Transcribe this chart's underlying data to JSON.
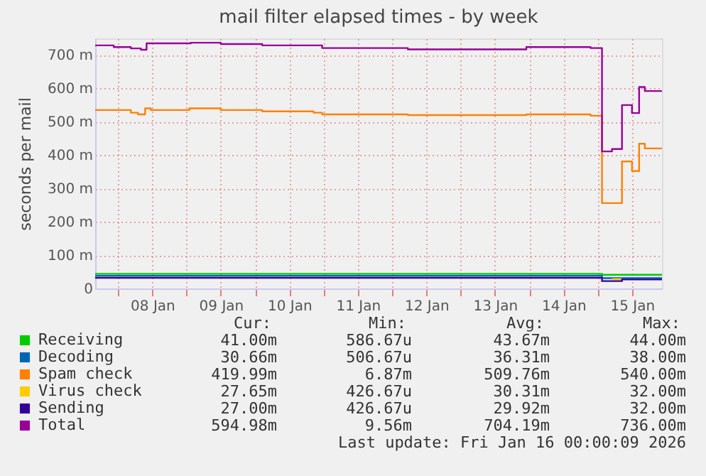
{
  "chart_data": {
    "type": "step",
    "title": "mail filter elapsed times - by week",
    "ylabel": "seconds per mail",
    "xlim": [
      "2026-01-07T16:00",
      "2026-01-15T22:30"
    ],
    "xticks": [
      {
        "value": "2026-01-08T00:00",
        "label": null
      },
      {
        "value": "2026-01-08T12:00",
        "label": "08 Jan"
      },
      {
        "value": "2026-01-09T00:00",
        "label": null
      },
      {
        "value": "2026-01-09T12:00",
        "label": "09 Jan"
      },
      {
        "value": "2026-01-10T00:00",
        "label": null
      },
      {
        "value": "2026-01-10T12:00",
        "label": "10 Jan"
      },
      {
        "value": "2026-01-11T00:00",
        "label": null
      },
      {
        "value": "2026-01-11T12:00",
        "label": "11 Jan"
      },
      {
        "value": "2026-01-12T00:00",
        "label": null
      },
      {
        "value": "2026-01-12T12:00",
        "label": "12 Jan"
      },
      {
        "value": "2026-01-13T00:00",
        "label": null
      },
      {
        "value": "2026-01-13T12:00",
        "label": "13 Jan"
      },
      {
        "value": "2026-01-14T00:00",
        "label": null
      },
      {
        "value": "2026-01-14T12:00",
        "label": "14 Jan"
      },
      {
        "value": "2026-01-15T00:00",
        "label": null
      },
      {
        "value": "2026-01-15T12:00",
        "label": "15 Jan"
      }
    ],
    "ylim": [
      0,
      750
    ],
    "yticks": [
      {
        "value": 0,
        "label": "0"
      },
      {
        "value": 100,
        "label": "100 m"
      },
      {
        "value": 200,
        "label": "200 m"
      },
      {
        "value": 300,
        "label": "300 m"
      },
      {
        "value": 400,
        "label": "400 m"
      },
      {
        "value": 500,
        "label": "500 m"
      },
      {
        "value": 600,
        "label": "600 m"
      },
      {
        "value": 700,
        "label": "700 m"
      }
    ],
    "grid": true,
    "legend": "bottom left",
    "series": [
      {
        "name": "Receiving",
        "color": "#00cc00",
        "x": [
          "2026-01-07T16:00",
          "2026-01-15T01:30",
          "2026-01-15T22:30"
        ],
        "values": [
          44,
          41,
          41
        ]
      },
      {
        "name": "Decoding",
        "color": "#0066b3",
        "x": [
          "2026-01-07T16:00",
          "2026-01-15T01:30",
          "2026-01-15T22:30"
        ],
        "values": [
          38,
          31,
          31
        ]
      },
      {
        "name": "Spam check",
        "color": "#ff8000",
        "x": [
          "2026-01-07T16:00",
          "2026-01-08T04:30",
          "2026-01-08T07:00",
          "2026-01-08T09:30",
          "2026-01-08T11:30",
          "2026-01-09T01:00",
          "2026-01-09T12:00",
          "2026-01-10T02:30",
          "2026-01-10T20:30",
          "2026-01-10T23:30",
          "2026-01-12T05:30",
          "2026-01-13T23:00",
          "2026-01-14T21:30",
          "2026-01-15T01:30",
          "2026-01-15T08:30",
          "2026-01-15T12:00",
          "2026-01-15T14:30",
          "2026-01-15T16:30",
          "2026-01-15T22:30"
        ],
        "values": [
          535,
          527,
          522,
          540,
          535,
          540,
          535,
          531,
          527,
          522,
          520,
          522,
          518,
          256,
          381,
          352,
          434,
          420,
          420
        ]
      },
      {
        "name": "Virus check",
        "color": "#ffcc00",
        "x": [
          "2026-01-15T05:00",
          "2026-01-15T08:30"
        ],
        "values": [
          28,
          28
        ]
      },
      {
        "name": "Sending",
        "color": "#330099",
        "x": [
          "2026-01-07T16:00",
          "2026-01-15T01:30",
          "2026-01-15T08:30",
          "2026-01-15T22:30"
        ],
        "values": [
          32,
          22,
          27,
          27
        ]
      },
      {
        "name": "Total",
        "color": "#990099",
        "x": [
          "2026-01-07T16:00",
          "2026-01-07T22:30",
          "2026-01-08T04:30",
          "2026-01-08T08:00",
          "2026-01-08T10:00",
          "2026-01-09T01:30",
          "2026-01-09T12:00",
          "2026-01-10T02:30",
          "2026-01-10T23:30",
          "2026-01-12T05:30",
          "2026-01-13T23:00",
          "2026-01-14T21:30",
          "2026-01-15T01:30",
          "2026-01-15T05:00",
          "2026-01-15T08:30",
          "2026-01-15T12:00",
          "2026-01-15T14:30",
          "2026-01-15T16:30",
          "2026-01-15T22:30"
        ],
        "values": [
          729,
          724,
          720,
          716,
          735,
          737,
          733,
          729,
          721,
          717,
          724,
          721,
          411,
          418,
          550,
          526,
          604,
          592,
          592
        ]
      }
    ],
    "annotations": [
      "Cur:",
      "Min:",
      "Avg:",
      "Max:",
      "41.00m",
      "586.67u",
      "43.67m",
      "44.00m",
      "30.66m",
      "506.67u",
      "36.31m",
      "38.00m",
      "419.99m",
      "6.87m",
      "509.76m",
      "540.00m",
      "27.65m",
      "426.67u",
      "30.31m",
      "32.00m",
      "27.00m",
      "426.67u",
      "29.92m",
      "32.00m",
      "594.98m",
      "9.56m",
      "704.19m",
      "736.00m",
      "Last update: Fri Jan 16 00:00:09 2026"
    ]
  }
}
